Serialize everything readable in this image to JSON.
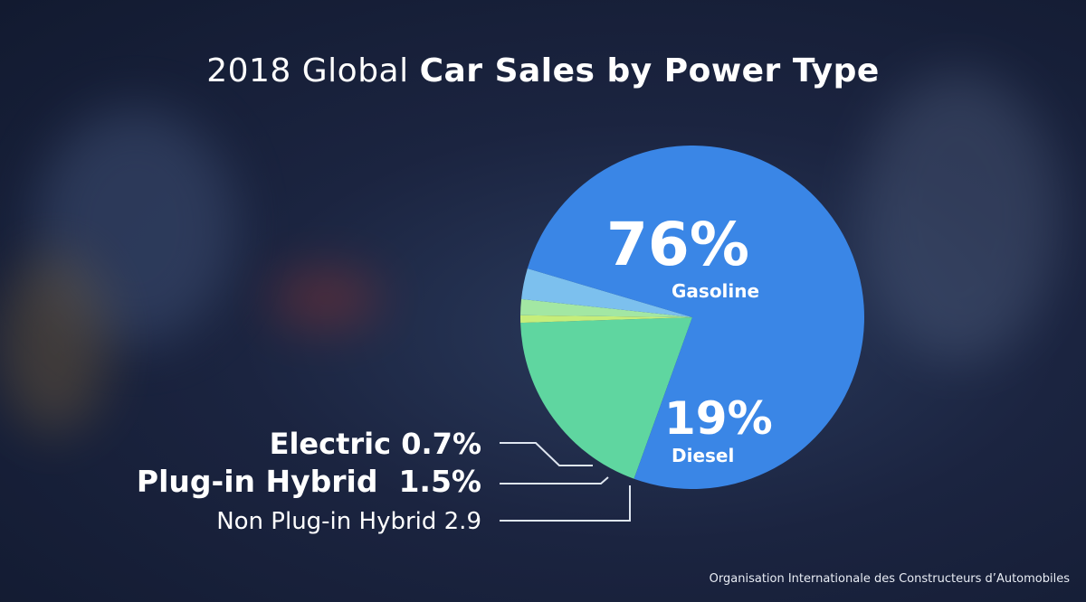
{
  "title": {
    "light": "2018 Global",
    "bold": "Car Sales by Power Type"
  },
  "chart_data": {
    "type": "pie",
    "title": "2018 Global Car Sales by Power Type",
    "slices": [
      {
        "name": "Gasoline",
        "value": 76,
        "label": "76%",
        "color": "#3a86e6"
      },
      {
        "name": "Diesel",
        "value": 19,
        "label": "19%",
        "color": "#5fd6a0"
      },
      {
        "name": "Non Plug-in Hybrid",
        "value": 2.9,
        "label": "2.9",
        "color": "#7cc0ee"
      },
      {
        "name": "Plug-in Hybrid",
        "value": 1.5,
        "label": "1.5%",
        "color": "#a3e7a3"
      },
      {
        "name": "Electric",
        "value": 0.7,
        "label": "0.7%",
        "color": "#c6ee7a"
      }
    ],
    "callouts": {
      "electric": "Electric 0.7%",
      "plugin": "Plug-in Hybrid  1.5%",
      "nonplugin": "Non Plug-in Hybrid 2.9"
    },
    "inside_labels": {
      "gasoline_pct": "76%",
      "gasoline_name": "Gasoline",
      "diesel_pct": "19%",
      "diesel_name": "Diesel"
    }
  },
  "source": "Organisation Internationale des Constructeurs d’Automobiles"
}
